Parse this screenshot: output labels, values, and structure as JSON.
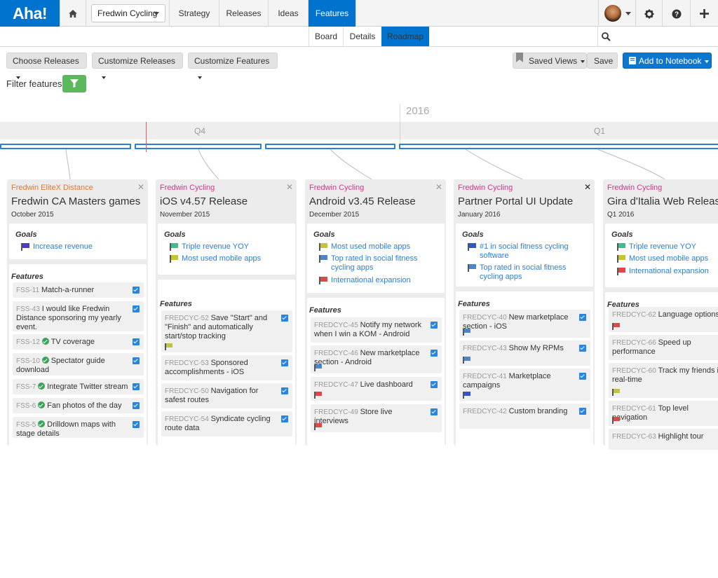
{
  "app": {
    "logo": "Aha!",
    "workspace": "Fredwin Cycling"
  },
  "nav": {
    "tabs": [
      {
        "label": "Strategy"
      },
      {
        "label": "Releases"
      },
      {
        "label": "Ideas"
      },
      {
        "label": "Features",
        "active": true
      }
    ]
  },
  "subnav": {
    "tabs": [
      {
        "label": "Board"
      },
      {
        "label": "Details"
      },
      {
        "label": "Roadmap",
        "active": true
      }
    ]
  },
  "toolbar": {
    "choose_releases": "Choose Releases",
    "customize_releases": "Customize Releases",
    "customize_features": "Customize Features",
    "saved_views": "Saved Views",
    "save": "Save",
    "add_to_notebook": "Add to Notebook"
  },
  "filter": {
    "label": "Filter features"
  },
  "timeline": {
    "year": "2016",
    "quarters": [
      "Q4",
      "Q1"
    ]
  },
  "colors": {
    "brand": "#0073cf",
    "accent_blue": "#2a7fd4",
    "green": "#5cb85c",
    "orange_ws": "#e8752b",
    "pink_ws": "#d6338c"
  },
  "releases": [
    {
      "workspace": "Fredwin EliteX Distance",
      "workspace_color": "#e8752b",
      "title": "Fredwin CA Masters games",
      "date": "October 2015",
      "goals_label": "Goals",
      "goals": [
        {
          "text": "Increase revenue",
          "flag": "#4a3cc9"
        }
      ],
      "features_label": "Features",
      "features": [
        {
          "ref": "FSS-11",
          "name": "Match-a-runner",
          "done": false
        },
        {
          "ref": "FSS-43",
          "name": "I would like Fredwin Distance sponsoring my yearly event.",
          "done": false
        },
        {
          "ref": "FSS-12",
          "name": "TV coverage",
          "done": true
        },
        {
          "ref": "FSS-10",
          "name": "Spectator guide download",
          "done": true
        },
        {
          "ref": "FSS-7",
          "name": "Integrate Twitter stream",
          "done": true
        },
        {
          "ref": "FSS-6",
          "name": "Fan photos of the day",
          "done": true
        },
        {
          "ref": "FSS-5",
          "name": "Drilldown maps with stage details",
          "done": true
        }
      ]
    },
    {
      "workspace": "Fredwin Cycling",
      "workspace_color": "#d6338c",
      "title": "iOS v4.57 Release",
      "date": "November 2015",
      "goals_label": "Goals",
      "goals": [
        {
          "text": "Triple revenue YOY",
          "flag": "#3bbf8f"
        },
        {
          "text": "Most used mobile apps",
          "flag": "#c4c43a"
        }
      ],
      "features_label": "Features",
      "features": [
        {
          "ref": "FREDCYC-52",
          "name": "Save \"Start\" and \"Finish\" and automatically start/stop tracking",
          "flag": "#c4c43a"
        },
        {
          "ref": "FREDCYC-53",
          "name": "Sponsored accomplishments - iOS"
        },
        {
          "ref": "FREDCYC-50",
          "name": "Navigation for safest routes"
        },
        {
          "ref": "FREDCYC-54",
          "name": "Syndicate cycling route data"
        }
      ]
    },
    {
      "workspace": "Fredwin Cycling",
      "workspace_color": "#d6338c",
      "title": "Android v3.45 Release",
      "date": "December 2015",
      "goals_label": "Goals",
      "goals": [
        {
          "text": "Most used mobile apps",
          "flag": "#c4c43a"
        },
        {
          "text": "Top rated in social fitness cycling apps",
          "flag": "#4a86c8"
        },
        {
          "text": "International expansion",
          "flag": "#e04848"
        }
      ],
      "features_label": "Features",
      "features": [
        {
          "ref": "FREDCYC-45",
          "name": "Notify my network when I win a KOM - Android"
        },
        {
          "ref": "FREDCYC-46",
          "name": "New marketplace section - Android",
          "flag": "#4a86c8"
        },
        {
          "ref": "FREDCYC-47",
          "name": "Live dashboard",
          "flag": "#e04848"
        },
        {
          "ref": "FREDCYC-49",
          "name": "Store live interviews",
          "flag": "#e04848"
        }
      ]
    },
    {
      "workspace": "Fredwin Cycling",
      "workspace_color": "#d6338c",
      "title": "Partner Portal UI Update",
      "date": "January 2016",
      "goals_label": "Goals",
      "goals": [
        {
          "text": "#1 in social fitness cycling software",
          "flag": "#3355c8"
        },
        {
          "text": "Top rated in social fitness cycling apps",
          "flag": "#4a86c8"
        }
      ],
      "features_label": "Features",
      "features": [
        {
          "ref": "FREDCYC-40",
          "name": "New marketplace section - iOS",
          "flag": "#4a86c8"
        },
        {
          "ref": "FREDCYC-43",
          "name": "Show My RPMs",
          "flag": "#4a86c8"
        },
        {
          "ref": "FREDCYC-41",
          "name": "Marketplace campaigns",
          "flag": "#3355c8"
        },
        {
          "ref": "FREDCYC-42",
          "name": "Custom branding"
        }
      ]
    },
    {
      "workspace": "Fredwin Cycling",
      "workspace_color": "#d6338c",
      "title": "Gira d'Italia Web Release",
      "date": "Q1 2016",
      "goals_label": "Goals",
      "goals": [
        {
          "text": "Triple revenue YOY",
          "flag": "#3bbf8f"
        },
        {
          "text": "Most used mobile apps",
          "flag": "#c4c43a"
        },
        {
          "text": "International expansion",
          "flag": "#e04848"
        }
      ],
      "features_label": "Features",
      "features": [
        {
          "ref": "FREDCYC-62",
          "name": "Language options",
          "flag": "#e04848"
        },
        {
          "ref": "FREDCYC-66",
          "name": "Speed up performance"
        },
        {
          "ref": "FREDCYC-60",
          "name": "Track my friends in real-time",
          "flag": "#c4c43a"
        },
        {
          "ref": "FREDCYC-61",
          "name": "Top level navigation",
          "flag": "#e04848"
        },
        {
          "ref": "FREDCYC-63",
          "name": "Highlight tour"
        }
      ]
    }
  ]
}
